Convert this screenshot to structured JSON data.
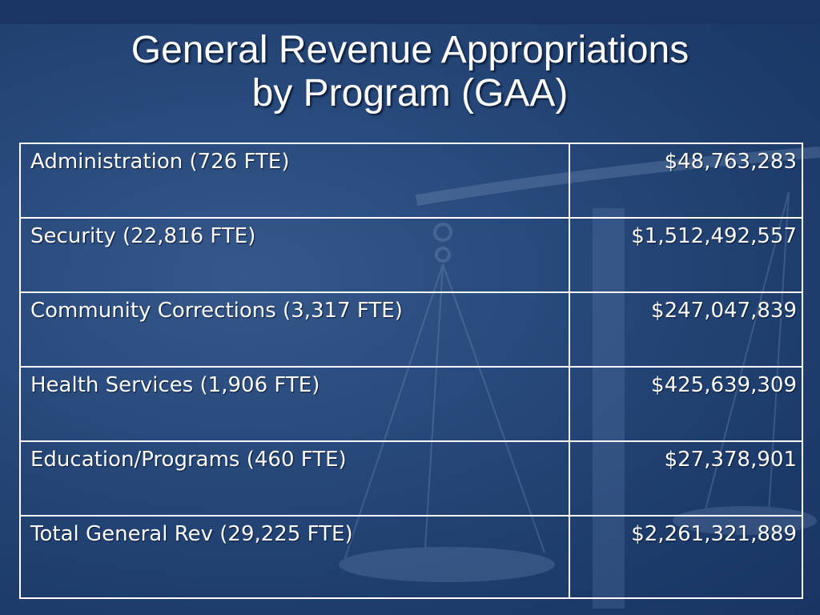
{
  "slide": {
    "title_line1": "General Revenue Appropriations",
    "title_line2": "by Program (GAA)"
  },
  "table": {
    "rows": [
      {
        "program": "Administration (726 FTE)",
        "amount": "$48,763,283"
      },
      {
        "program": "Security (22,816 FTE)",
        "amount": "$1,512,492,557"
      },
      {
        "program": "Community Corrections (3,317 FTE)",
        "amount": "$247,047,839"
      },
      {
        "program": "Health Services (1,906 FTE)",
        "amount": "$425,639,309"
      },
      {
        "program": "Education/Programs (460 FTE)",
        "amount": "$27,378,901"
      },
      {
        "program": "Total General Rev (29,225 FTE)",
        "amount": "$2,261,321,889"
      }
    ]
  },
  "colors": {
    "background": "#284a7c",
    "text": "#ffffff",
    "grid": "#ffffff"
  },
  "background_image": "scales-of-justice"
}
